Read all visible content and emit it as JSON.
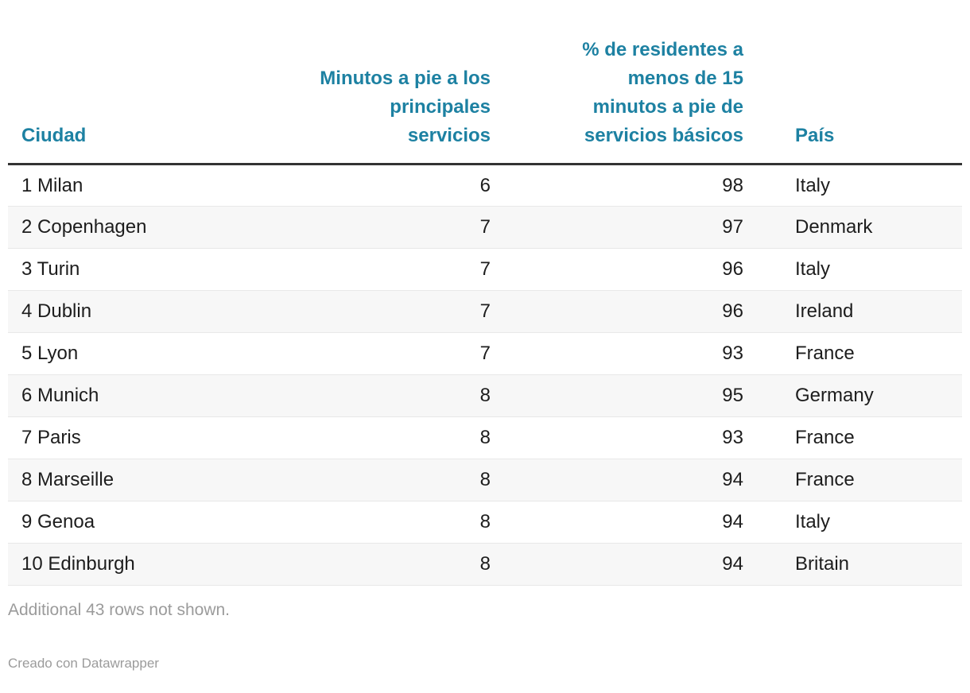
{
  "chart_data": {
    "type": "table",
    "columns": [
      {
        "id": "ciudad",
        "label": "Ciudad",
        "align": "left"
      },
      {
        "id": "minutos",
        "label": "Minutos a pie a los\nprincipales\nservicios",
        "align": "right"
      },
      {
        "id": "pct15",
        "label": "% de residentes a\nmenos de 15\nminutos a pie de\nservicios básicos",
        "align": "right"
      },
      {
        "id": "pais",
        "label": "País",
        "align": "left"
      }
    ],
    "rows": [
      [
        "1 Milan",
        "6",
        "98",
        "Italy"
      ],
      [
        "2 Copenhagen",
        "7",
        "97",
        "Denmark"
      ],
      [
        "3 Turin",
        "7",
        "96",
        "Italy"
      ],
      [
        "4 Dublin",
        "7",
        "96",
        "Ireland"
      ],
      [
        "5 Lyon",
        "7",
        "93",
        "France"
      ],
      [
        "6 Munich",
        "8",
        "95",
        "Germany"
      ],
      [
        "7 Paris",
        "8",
        "93",
        "France"
      ],
      [
        "8 Marseille",
        "8",
        "94",
        "France"
      ],
      [
        "9 Genoa",
        "8",
        "94",
        "Italy"
      ],
      [
        "10 Edinburgh",
        "8",
        "94",
        "Britain"
      ]
    ],
    "layout_hints": {
      "zebra_striping": true,
      "header_rule": "thick-dark",
      "numeric_columns_right_aligned": true
    }
  },
  "footer": {
    "note": "Additional 43 rows not shown.",
    "credit": "Creado con Datawrapper"
  },
  "colors": {
    "header-text": "#1d81a2",
    "body-text": "#1d1d1d",
    "stripe": "#f7f7f7",
    "row-border": "#e8e8e8",
    "head-rule": "#333333",
    "muted": "#9b9b9b"
  }
}
